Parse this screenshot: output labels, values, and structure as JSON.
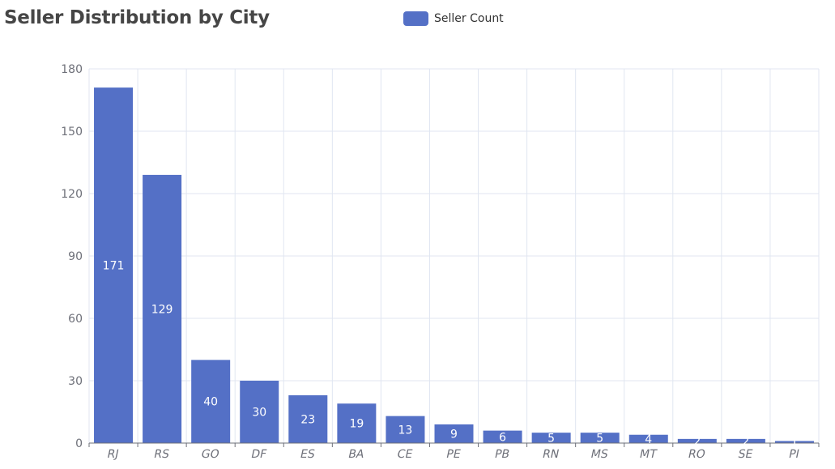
{
  "chart": {
    "title": "Seller Distribution by City",
    "legend_label": "Seller Count"
  },
  "chart_data": {
    "type": "bar",
    "title": "Seller Distribution by City",
    "xlabel": "",
    "ylabel": "",
    "categories": [
      "RJ",
      "RS",
      "GO",
      "DF",
      "ES",
      "BA",
      "CE",
      "PE",
      "PB",
      "RN",
      "MS",
      "MT",
      "RO",
      "SE",
      "PI"
    ],
    "series": [
      {
        "name": "Seller Count",
        "values": [
          171,
          129,
          40,
          30,
          23,
          19,
          13,
          9,
          6,
          5,
          5,
          4,
          2,
          2,
          1
        ],
        "color": "#5470c6"
      }
    ],
    "ylim": [
      0,
      180
    ],
    "yticks": [
      0,
      30,
      60,
      90,
      120,
      150,
      180
    ],
    "grid": true,
    "legend_position": "top-center",
    "data_labels": "inside-center",
    "x_tick_rotation": "slanted"
  }
}
